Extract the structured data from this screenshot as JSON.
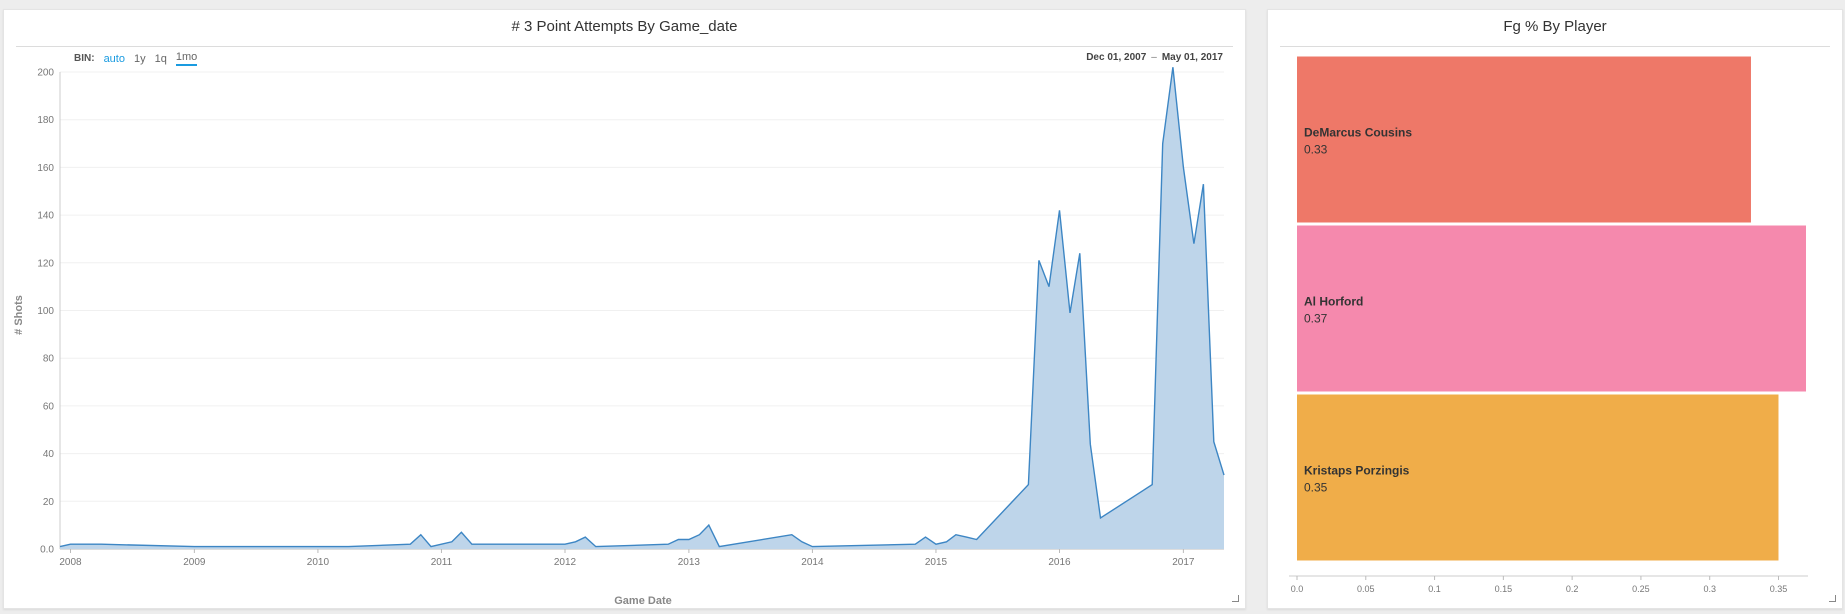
{
  "left_panel": {
    "title": "# 3 Point Attempts By Game_date",
    "bin": {
      "label": "BIN:",
      "options": [
        "auto",
        "1y",
        "1q",
        "1mo"
      ]
    },
    "date_range": {
      "start": "Dec 01, 2007",
      "separator": "–",
      "end": "May 01, 2017"
    }
  },
  "right_panel": {
    "title": "Fg % By Player"
  },
  "colors": {
    "area_fill": "#bed5ea",
    "area_line": "#3d86c4",
    "bar_colors": [
      "#ee7868",
      "#f589ad",
      "#f0ad49"
    ],
    "accent": "#1a9be0"
  },
  "chart_data": [
    {
      "type": "area",
      "title": "# 3 Point Attempts By Game_date",
      "xlabel": "Game Date",
      "ylabel": "# Shots",
      "xlim": [
        "2007-12-01",
        "2017-05-01"
      ],
      "ylim": [
        0,
        200
      ],
      "yticks": [
        "0.0",
        "20",
        "40",
        "60",
        "80",
        "100",
        "120",
        "140",
        "160",
        "180",
        "200"
      ],
      "xticks": [
        "2008",
        "2009",
        "2010",
        "2011",
        "2012",
        "2013",
        "2014",
        "2015",
        "2016",
        "2017"
      ],
      "grid": true,
      "series": [
        {
          "points": [
            [
              "2007-12-01",
              1
            ],
            [
              "2008-01-01",
              2
            ],
            [
              "2008-04-01",
              2
            ],
            [
              "2009-01-01",
              1
            ],
            [
              "2010-04-01",
              1
            ],
            [
              "2010-10-01",
              2
            ],
            [
              "2010-11-01",
              6
            ],
            [
              "2010-12-01",
              1
            ],
            [
              "2011-02-01",
              3
            ],
            [
              "2011-03-01",
              7
            ],
            [
              "2011-04-01",
              2
            ],
            [
              "2012-01-01",
              2
            ],
            [
              "2012-02-01",
              3
            ],
            [
              "2012-03-01",
              5
            ],
            [
              "2012-04-01",
              1
            ],
            [
              "2012-11-01",
              2
            ],
            [
              "2012-12-01",
              4
            ],
            [
              "2013-01-01",
              4
            ],
            [
              "2013-02-01",
              6
            ],
            [
              "2013-03-01",
              10
            ],
            [
              "2013-04-01",
              1
            ],
            [
              "2013-11-01",
              6
            ],
            [
              "2013-12-01",
              3
            ],
            [
              "2014-01-01",
              1
            ],
            [
              "2014-11-01",
              2
            ],
            [
              "2014-12-01",
              5
            ],
            [
              "2015-01-01",
              2
            ],
            [
              "2015-02-01",
              3
            ],
            [
              "2015-03-01",
              6
            ],
            [
              "2015-04-01",
              5
            ],
            [
              "2015-05-01",
              4
            ],
            [
              "2015-10-01",
              27
            ],
            [
              "2015-11-01",
              121
            ],
            [
              "2015-12-01",
              110
            ],
            [
              "2016-01-01",
              142
            ],
            [
              "2016-02-01",
              99
            ],
            [
              "2016-03-01",
              124
            ],
            [
              "2016-04-01",
              44
            ],
            [
              "2016-05-01",
              13
            ],
            [
              "2016-10-01",
              27
            ],
            [
              "2016-11-01",
              170
            ],
            [
              "2016-12-01",
              202
            ],
            [
              "2017-01-01",
              160
            ],
            [
              "2017-02-01",
              128
            ],
            [
              "2017-03-01",
              153
            ],
            [
              "2017-04-01",
              45
            ],
            [
              "2017-05-01",
              31
            ]
          ]
        }
      ]
    },
    {
      "type": "bar",
      "orientation": "horizontal",
      "title": "Fg % By Player",
      "categories": [
        "DeMarcus Cousins",
        "Al Horford",
        "Kristaps Porzingis"
      ],
      "values": [
        0.33,
        0.37,
        0.35
      ],
      "value_labels": [
        "0.33",
        "0.37",
        "0.35"
      ],
      "xlim": [
        0,
        0.37
      ],
      "xticks": [
        "0.0",
        "0.05",
        "0.1",
        "0.15",
        "0.2",
        "0.25",
        "0.3",
        "0.35"
      ],
      "grid": false
    }
  ]
}
